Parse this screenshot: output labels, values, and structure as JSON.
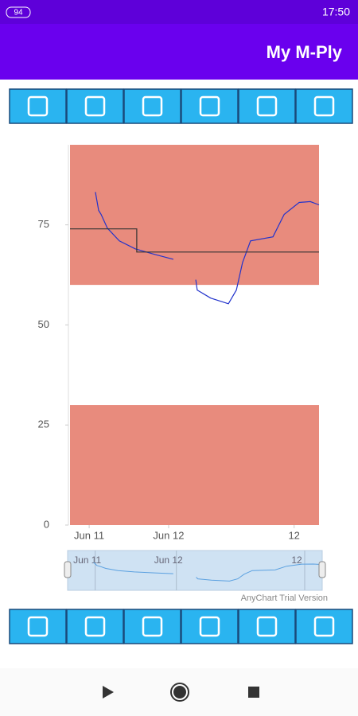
{
  "status_bar": {
    "battery": "94",
    "time": "17:50"
  },
  "app_bar": {
    "title": "My M-Ply"
  },
  "chart_data": {
    "type": "line",
    "xlim": [
      0,
      100
    ],
    "xticks": [
      {
        "value": 7.7,
        "label": "Jun 11"
      },
      {
        "value": 39.6,
        "label": "Jun 12"
      },
      {
        "value": 90,
        "label": "12"
      }
    ],
    "ylim": [
      0,
      95
    ],
    "yticks": [
      0,
      25,
      50,
      75
    ],
    "bands": [
      {
        "from": 60,
        "to": 95,
        "color": "#e88b7d"
      },
      {
        "from": 0,
        "to": 30,
        "color": "#e88b7d"
      }
    ],
    "series": [
      {
        "color": "#2233cc",
        "x": [
          10.2,
          11.5,
          12.5,
          15,
          19.8,
          26.2,
          34.2,
          41.5,
          46,
          50.5,
          51.1,
          56.5,
          63.6,
          66.8,
          69.3,
          72.5,
          81.5,
          86,
          92,
          96.5,
          100
        ],
        "values": [
          83.2,
          78.6,
          77.6,
          74.2,
          71,
          69,
          67.6,
          66.4,
          null,
          61.3,
          58.7,
          56.7,
          55.3,
          58.7,
          65.6,
          71,
          72,
          77.6,
          80.6,
          80.8,
          80
        ]
      },
      {
        "color": "#333333",
        "x": [
          0,
          26.8,
          26.8,
          100
        ],
        "values": [
          74,
          74,
          68.2,
          68.2
        ]
      }
    ],
    "credit": "AnyChart Trial Version"
  }
}
